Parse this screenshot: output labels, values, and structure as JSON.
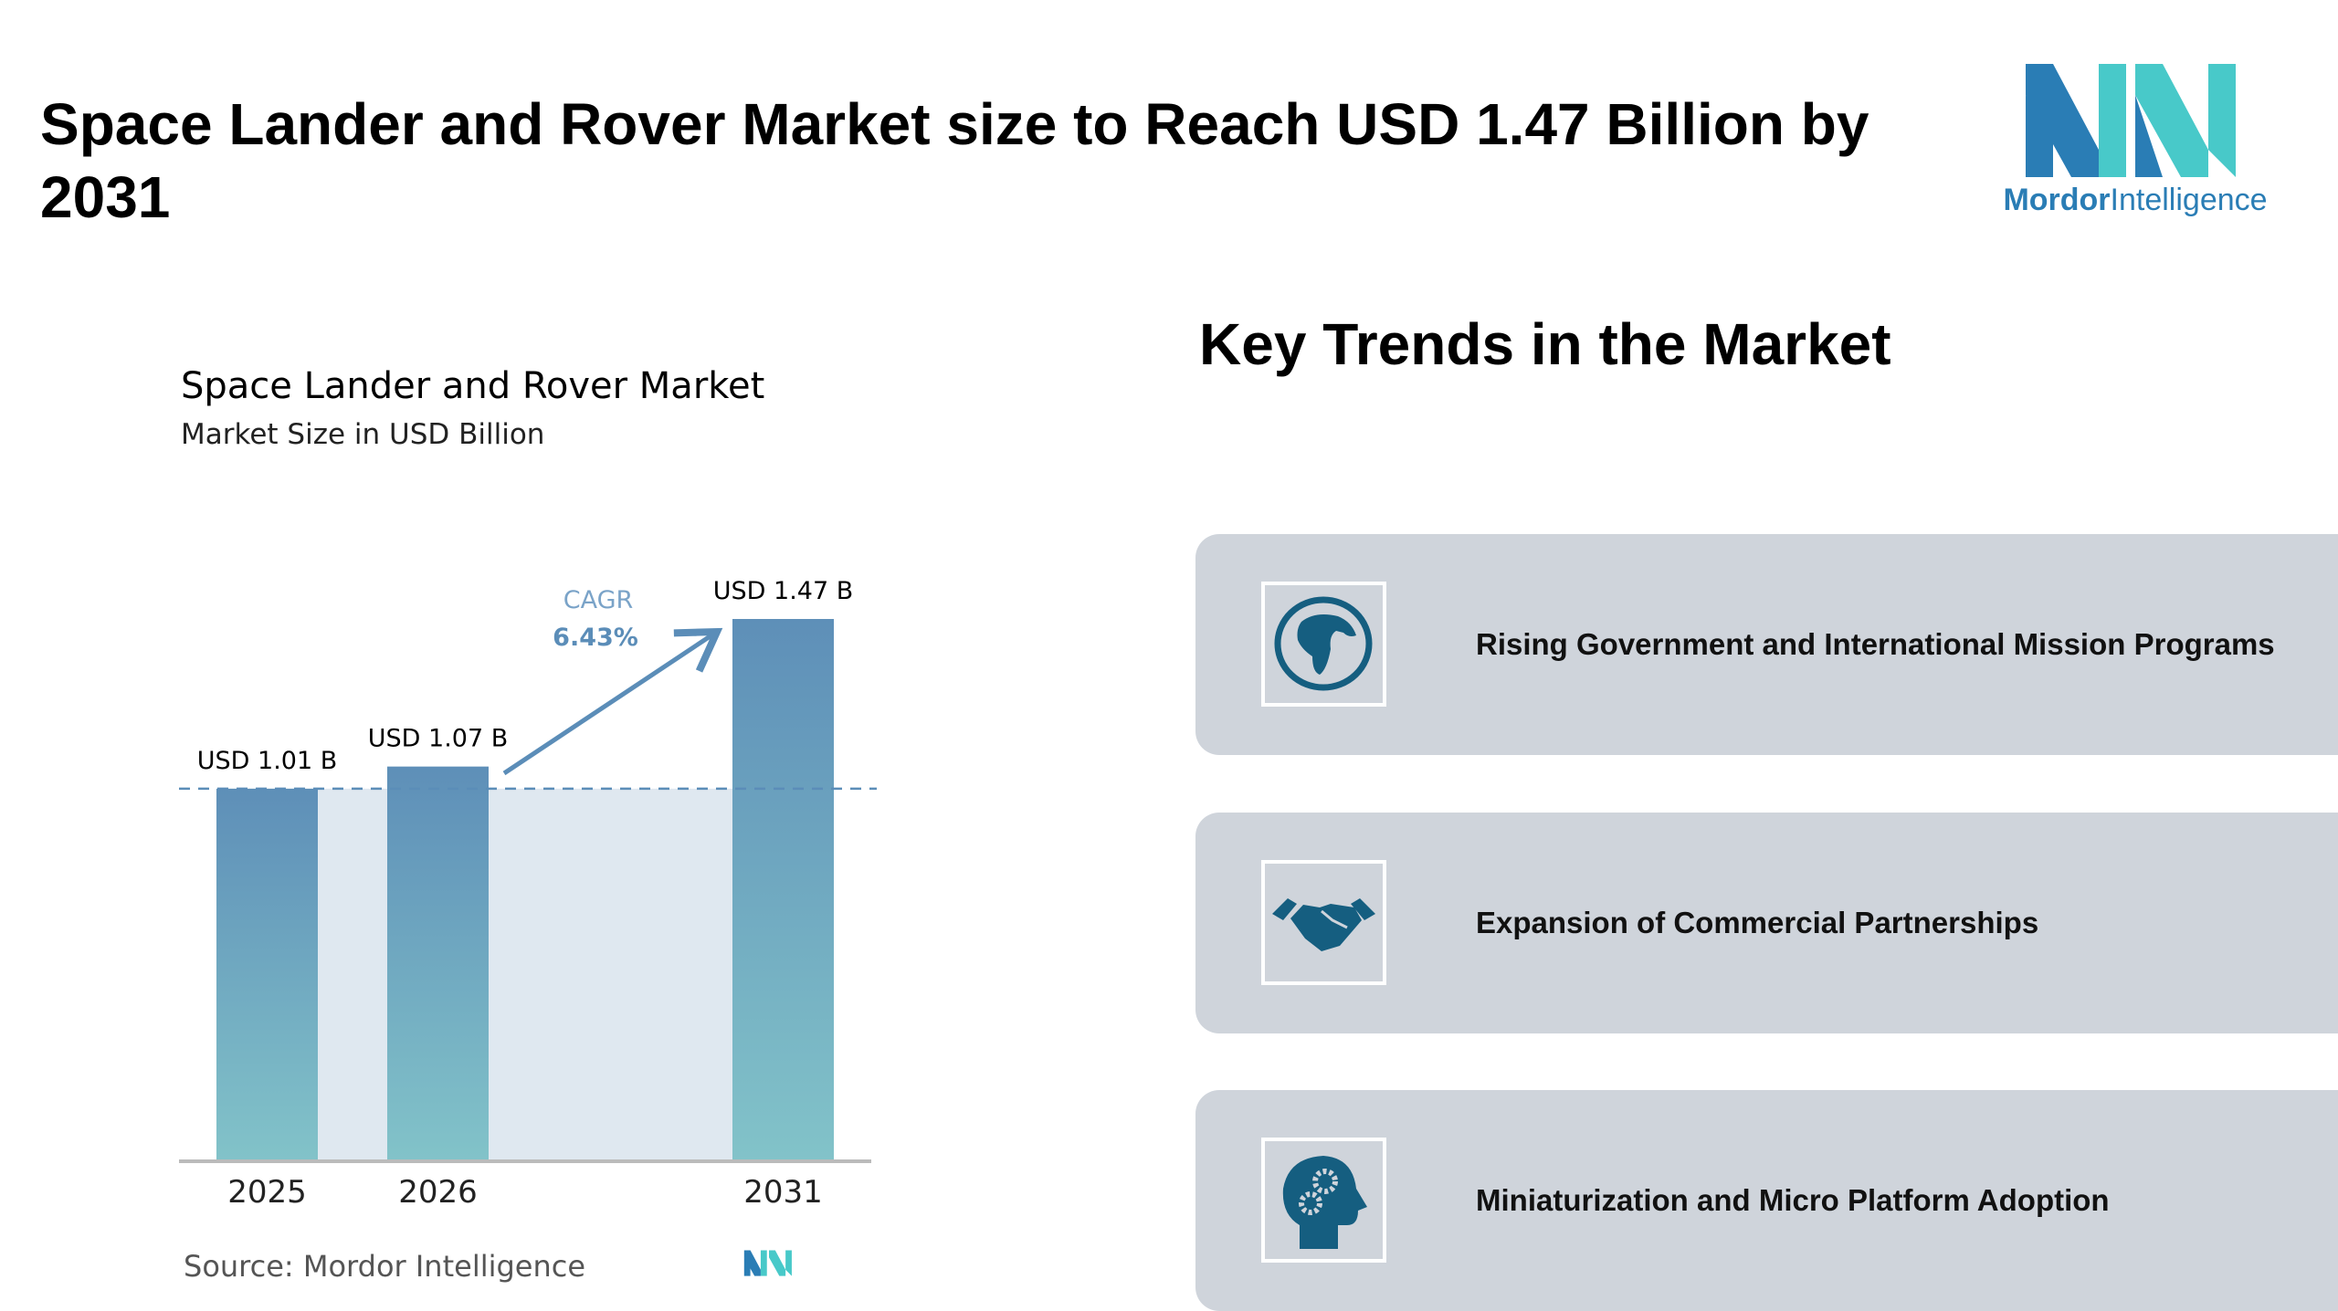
{
  "header": {
    "title": "Space Lander and Rover Market size to Reach USD 1.47 Billion by 2031",
    "logo_text_bold": "Mordor",
    "logo_text_regular": "Intelligence"
  },
  "chart_data": {
    "type": "bar",
    "title": "Space Lander and Rover Market",
    "subtitle": "Market Size in USD Billion",
    "categories": [
      "2025",
      "2026",
      "2031"
    ],
    "values": [
      1.01,
      1.07,
      1.47
    ],
    "data_labels": [
      "USD 1.01 B",
      "USD 1.07 B",
      "USD 1.47 B"
    ],
    "cagr_label": "CAGR",
    "cagr_value": "6.43%",
    "ylim": [
      0,
      1.47
    ],
    "colors": {
      "bar_top": "#5e8fb8",
      "bar_bottom": "#82c3c9",
      "shade": "#dfe8f0",
      "accent": "#5b8db8"
    }
  },
  "source": "Source:  Mordor Intelligence",
  "trends": {
    "title": "Key Trends in the Market",
    "items": [
      {
        "icon": "globe-icon",
        "label": "Rising Government and International Mission Programs"
      },
      {
        "icon": "handshake-icon",
        "label": "Expansion of Commercial Partnerships"
      },
      {
        "icon": "head-gears-icon",
        "label": "Miniaturization and Micro Platform Adoption"
      }
    ]
  }
}
